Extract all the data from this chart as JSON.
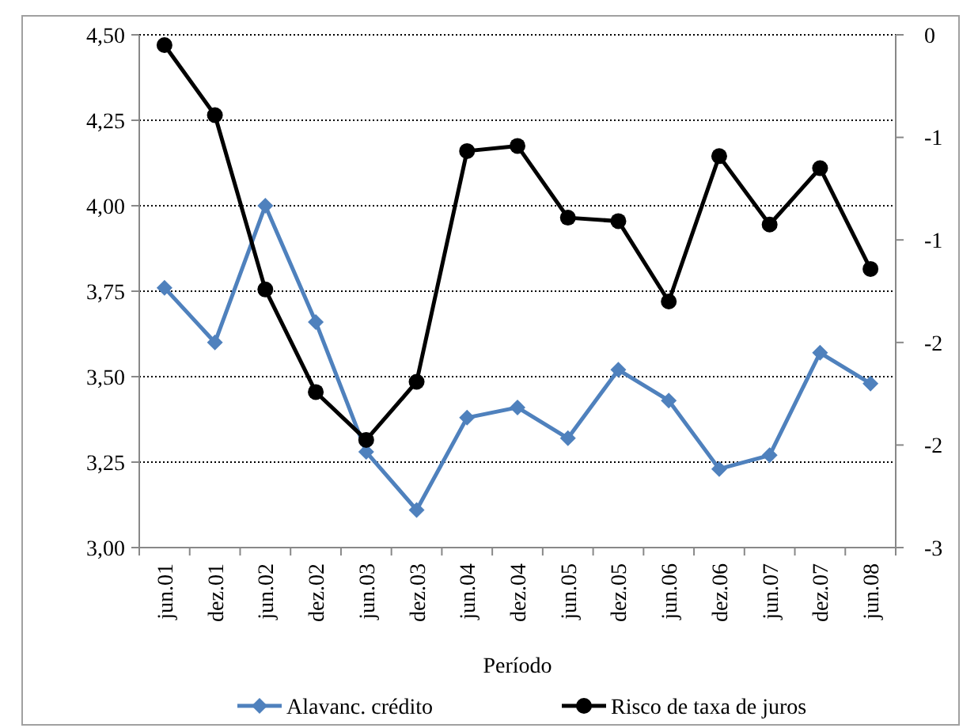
{
  "chart_data": {
    "type": "line",
    "xlabel": "Período",
    "categories": [
      "jun.01",
      "dez.01",
      "jun.02",
      "dez.02",
      "jun.03",
      "dez.03",
      "jun.04",
      "dez.04",
      "jun.05",
      "dez.05",
      "jun.06",
      "dez.06",
      "jun.07",
      "dez.07",
      "jun.08"
    ],
    "series": [
      {
        "name": "Alavanc. crédito",
        "color": "#4f81bd",
        "marker": "diamond",
        "values": [
          3.76,
          3.6,
          4.0,
          3.66,
          3.28,
          3.11,
          3.38,
          3.41,
          3.32,
          3.52,
          3.43,
          3.23,
          3.27,
          3.57,
          3.48
        ]
      },
      {
        "name": "Risco de taxa de juros",
        "color": "#000000",
        "marker": "circle",
        "axis": "y2",
        "values": [
          -0.06,
          -0.47,
          -1.49,
          -2.09,
          -2.37,
          -2.03,
          -0.68,
          -0.65,
          -1.07,
          -1.09,
          -1.56,
          -0.71,
          -1.11,
          -0.78,
          -1.37
        ]
      }
    ],
    "ylim": [
      3.0,
      4.5
    ],
    "yticks": [
      {
        "value": 3.0,
        "label": "3,00"
      },
      {
        "value": 3.25,
        "label": "3,25"
      },
      {
        "value": 3.5,
        "label": "3,50"
      },
      {
        "value": 3.75,
        "label": "3,75"
      },
      {
        "value": 4.0,
        "label": "4,00"
      },
      {
        "value": 4.25,
        "label": "4,25"
      },
      {
        "value": 4.5,
        "label": "4,50"
      }
    ],
    "y2lim": [
      -3,
      0
    ],
    "y2ticks": [
      {
        "value": -3,
        "label": "-3"
      },
      {
        "value": -2.4,
        "label": "-2"
      },
      {
        "value": -1.8,
        "label": "-2"
      },
      {
        "value": -1.2,
        "label": "-1"
      },
      {
        "value": -0.6,
        "label": "-1"
      },
      {
        "value": 0,
        "label": "0"
      }
    ],
    "grid": "y",
    "legend": "bottom",
    "line_style": "solid"
  }
}
